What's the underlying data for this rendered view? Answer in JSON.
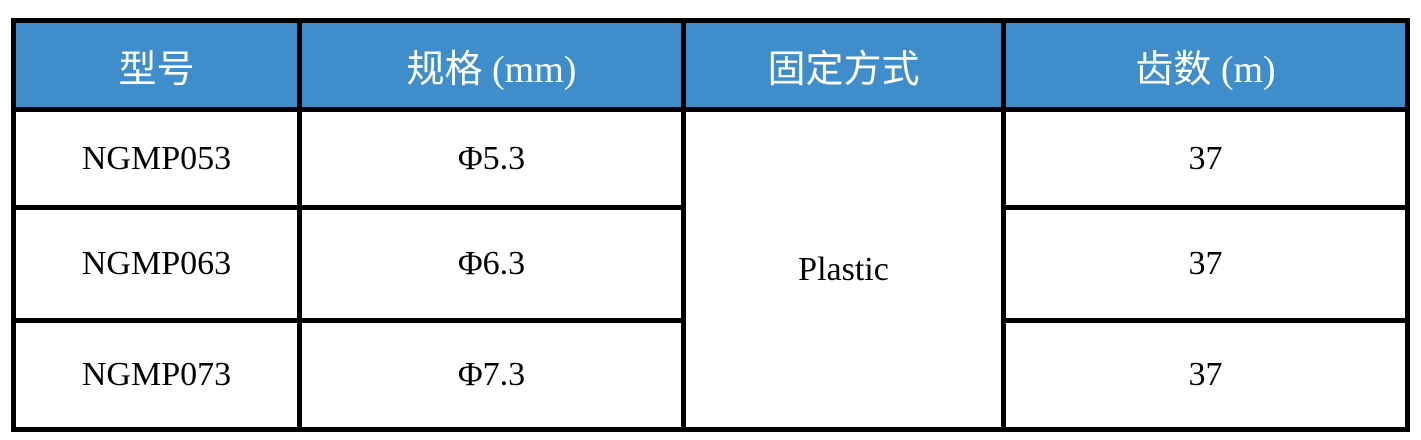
{
  "table": {
    "header_color": "#3f8dcb",
    "headers": [
      "型号",
      "规格 (mm)",
      "固定方式",
      "齿数 (m)"
    ],
    "rows": [
      {
        "model": "NGMP053",
        "spec": "Φ5.3",
        "teeth": "37"
      },
      {
        "model": "NGMP063",
        "spec": "Φ6.3",
        "teeth": "37"
      },
      {
        "model": "NGMP073",
        "spec": "Φ7.3",
        "teeth": "37"
      }
    ],
    "fixing_method": "Plastic"
  }
}
